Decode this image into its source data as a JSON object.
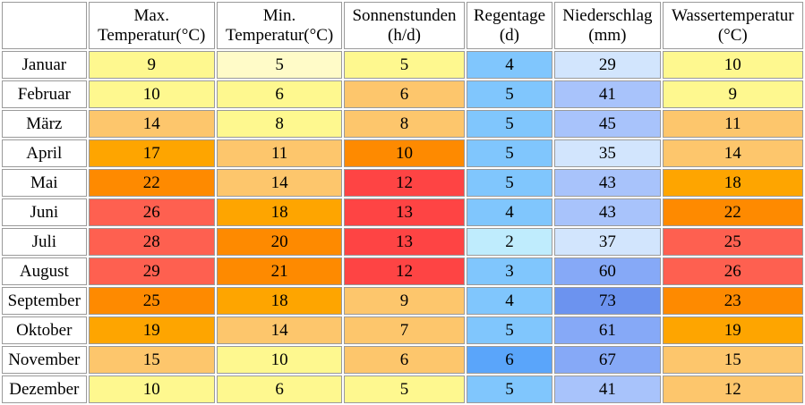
{
  "headers": [
    "",
    "Max. Temperatur(°C)",
    "Min. Temperatur(°C)",
    "Sonnenstunden (h/d)",
    "Regentage (d)",
    "Niederschlag (mm)",
    "Wassertemperatur (°C)"
  ],
  "header_lines": [
    [
      "Max.",
      "Temperatur(°C)"
    ],
    [
      "Min.",
      "Temperatur(°C)"
    ],
    [
      "Sonnenstunden",
      "(h/d)"
    ],
    [
      "Regentage",
      "(d)"
    ],
    [
      "Niederschlag",
      "(mm)"
    ],
    [
      "Wassertemperatur",
      "(°C)"
    ]
  ],
  "rows": [
    {
      "month": "Januar",
      "values": [
        9,
        5,
        5,
        4,
        29,
        10
      ],
      "colors": [
        "#fef88f",
        "#fffbc8",
        "#fef88f",
        "#80c6fd",
        "#d2e5fd",
        "#fef88f"
      ]
    },
    {
      "month": "Februar",
      "values": [
        10,
        6,
        6,
        5,
        41,
        9
      ],
      "colors": [
        "#fef88f",
        "#fef88f",
        "#fdc66c",
        "#80c6fd",
        "#a8c3fb",
        "#fef88f"
      ]
    },
    {
      "month": "März",
      "values": [
        14,
        8,
        8,
        5,
        45,
        11
      ],
      "colors": [
        "#fdc66c",
        "#fef88f",
        "#fdc66c",
        "#80c6fd",
        "#a8c3fb",
        "#fdc66c"
      ]
    },
    {
      "month": "April",
      "values": [
        17,
        11,
        10,
        5,
        35,
        14
      ],
      "colors": [
        "#fea500",
        "#fdc66c",
        "#fe8a00",
        "#80c6fd",
        "#d2e5fd",
        "#fdc66c"
      ]
    },
    {
      "month": "Mai",
      "values": [
        22,
        14,
        12,
        5,
        43,
        18
      ],
      "colors": [
        "#fe8a00",
        "#fdc66c",
        "#fe4444",
        "#80c6fd",
        "#a8c3fb",
        "#fea500"
      ]
    },
    {
      "month": "Juni",
      "values": [
        26,
        18,
        13,
        4,
        43,
        22
      ],
      "colors": [
        "#fe6050",
        "#fea500",
        "#fe4444",
        "#80c6fd",
        "#a8c3fb",
        "#fe8a00"
      ]
    },
    {
      "month": "Juli",
      "values": [
        28,
        20,
        13,
        2,
        37,
        25
      ],
      "colors": [
        "#fe6050",
        "#fe8a00",
        "#fe4444",
        "#bfecfd",
        "#d2e5fd",
        "#fe6050"
      ]
    },
    {
      "month": "August",
      "values": [
        29,
        21,
        12,
        3,
        60,
        26
      ],
      "colors": [
        "#fe6050",
        "#fe8a00",
        "#fe4444",
        "#80c6fd",
        "#86a9f7",
        "#fe6050"
      ]
    },
    {
      "month": "September",
      "values": [
        25,
        18,
        9,
        4,
        73,
        23
      ],
      "colors": [
        "#fe8a00",
        "#fea500",
        "#fdc66c",
        "#80c6fd",
        "#6c93ef",
        "#fe8a00"
      ]
    },
    {
      "month": "Oktober",
      "values": [
        19,
        14,
        7,
        5,
        61,
        19
      ],
      "colors": [
        "#fea500",
        "#fdc66c",
        "#fdc66c",
        "#80c6fd",
        "#86a9f7",
        "#fea500"
      ]
    },
    {
      "month": "November",
      "values": [
        15,
        10,
        6,
        6,
        67,
        15
      ],
      "colors": [
        "#fdc66c",
        "#fef88f",
        "#fdc66c",
        "#5aa5fa",
        "#86a9f7",
        "#fdc66c"
      ]
    },
    {
      "month": "Dezember",
      "values": [
        10,
        6,
        5,
        5,
        41,
        12
      ],
      "colors": [
        "#fef88f",
        "#fef88f",
        "#fef88f",
        "#80c6fd",
        "#a8c3fb",
        "#fdc66c"
      ]
    }
  ]
}
